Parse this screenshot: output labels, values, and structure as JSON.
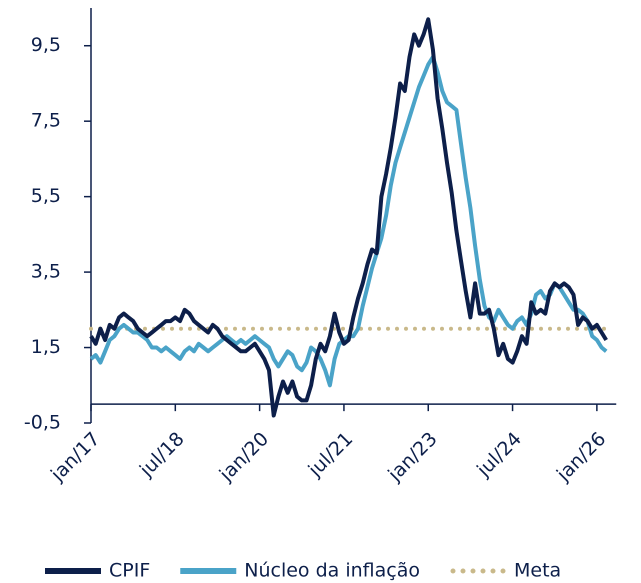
{
  "chart_data": {
    "type": "line",
    "categories": [
      "jan/17",
      null,
      null,
      null,
      null,
      null,
      null,
      null,
      null,
      null,
      null,
      null,
      null,
      null,
      null,
      null,
      null,
      null,
      "jul/18",
      null,
      null,
      null,
      null,
      null,
      null,
      null,
      null,
      null,
      null,
      null,
      null,
      null,
      null,
      null,
      null,
      null,
      "jan/20",
      null,
      null,
      null,
      null,
      null,
      null,
      null,
      null,
      null,
      null,
      null,
      null,
      null,
      null,
      null,
      null,
      null,
      "jul/21",
      null,
      null,
      null,
      null,
      null,
      null,
      null,
      null,
      null,
      null,
      null,
      null,
      null,
      null,
      null,
      null,
      null,
      "jan/23",
      null,
      null,
      null,
      null,
      null,
      null,
      null,
      null,
      null,
      null,
      null,
      null,
      null,
      null,
      null,
      null,
      null,
      "jul/24",
      null,
      null,
      null,
      null,
      null,
      null,
      null,
      null,
      null,
      null,
      null,
      null,
      null,
      null,
      null,
      null,
      null,
      "jan/26",
      null,
      null
    ],
    "series": [
      {
        "name": "CPIF",
        "color": "#0d1f4a",
        "style": "solid",
        "values": [
          1.8,
          1.6,
          2.0,
          1.7,
          2.1,
          2.0,
          2.3,
          2.4,
          2.3,
          2.2,
          2.0,
          1.9,
          1.8,
          1.9,
          2.0,
          2.1,
          2.2,
          2.2,
          2.3,
          2.2,
          2.5,
          2.4,
          2.2,
          2.1,
          2.0,
          1.9,
          2.1,
          2.0,
          1.8,
          1.7,
          1.6,
          1.5,
          1.4,
          1.4,
          1.5,
          1.6,
          1.4,
          1.2,
          0.9,
          -0.3,
          0.2,
          0.6,
          0.3,
          0.6,
          0.2,
          0.1,
          0.1,
          0.5,
          1.2,
          1.6,
          1.4,
          1.8,
          2.4,
          1.9,
          1.6,
          1.7,
          2.3,
          2.8,
          3.2,
          3.7,
          4.1,
          4.0,
          5.5,
          6.1,
          6.8,
          7.6,
          8.5,
          8.3,
          9.2,
          9.8,
          9.5,
          9.8,
          10.2,
          9.4,
          8.1,
          7.3,
          6.4,
          5.6,
          4.6,
          3.8,
          3.0,
          2.3,
          3.2,
          2.4,
          2.4,
          2.5,
          2.0,
          1.3,
          1.6,
          1.2,
          1.1,
          1.4,
          1.8,
          1.6,
          2.7,
          2.4,
          2.5,
          2.4,
          3.0,
          3.2,
          3.1,
          3.2,
          3.1,
          2.9,
          2.1,
          2.3,
          2.2,
          2.0,
          2.1,
          1.9,
          1.7
        ]
      },
      {
        "name": "Núcleo da inflação",
        "color": "#4aa3c8",
        "style": "solid",
        "values": [
          1.2,
          1.3,
          1.1,
          1.4,
          1.7,
          1.8,
          2.0,
          2.1,
          2.0,
          1.9,
          1.9,
          1.8,
          1.7,
          1.5,
          1.5,
          1.4,
          1.5,
          1.4,
          1.3,
          1.2,
          1.4,
          1.5,
          1.4,
          1.6,
          1.5,
          1.4,
          1.5,
          1.6,
          1.7,
          1.8,
          1.7,
          1.6,
          1.7,
          1.6,
          1.7,
          1.8,
          1.7,
          1.6,
          1.5,
          1.2,
          1.0,
          1.2,
          1.4,
          1.3,
          1.0,
          0.9,
          1.1,
          1.5,
          1.4,
          1.2,
          0.9,
          0.5,
          1.2,
          1.6,
          1.7,
          1.8,
          1.8,
          2.0,
          2.6,
          3.1,
          3.6,
          4.0,
          4.4,
          5.0,
          5.8,
          6.4,
          6.8,
          7.2,
          7.6,
          8.0,
          8.4,
          8.7,
          9.0,
          9.2,
          8.8,
          8.3,
          8.0,
          7.9,
          7.8,
          6.9,
          6.0,
          5.2,
          4.2,
          3.3,
          2.6,
          2.3,
          2.2,
          2.5,
          2.3,
          2.1,
          2.0,
          2.2,
          2.3,
          2.1,
          2.4,
          2.9,
          3.0,
          2.8,
          2.9,
          3.2,
          3.1,
          2.9,
          2.7,
          2.5,
          2.5,
          2.4,
          2.2,
          1.8,
          1.7,
          1.5,
          1.4
        ]
      },
      {
        "name": "Meta",
        "color": "#c9b98a",
        "style": "dotted",
        "values": [
          2,
          2,
          2,
          2,
          2,
          2,
          2,
          2,
          2,
          2,
          2,
          2,
          2,
          2,
          2,
          2,
          2,
          2,
          2,
          2,
          2,
          2,
          2,
          2,
          2,
          2,
          2,
          2,
          2,
          2,
          2,
          2,
          2,
          2,
          2,
          2,
          2,
          2,
          2,
          2,
          2,
          2,
          2,
          2,
          2,
          2,
          2,
          2,
          2,
          2,
          2,
          2,
          2,
          2,
          2,
          2,
          2,
          2,
          2,
          2,
          2,
          2,
          2,
          2,
          2,
          2,
          2,
          2,
          2,
          2,
          2,
          2,
          2,
          2,
          2,
          2,
          2,
          2,
          2,
          2,
          2,
          2,
          2,
          2,
          2,
          2,
          2,
          2,
          2,
          2,
          2,
          2,
          2,
          2,
          2,
          2,
          2,
          2,
          2,
          2,
          2,
          2,
          2,
          2,
          2,
          2,
          2,
          2,
          2,
          2,
          2
        ]
      }
    ],
    "ylim": [
      -0.5,
      10.5
    ],
    "yticks": [
      {
        "value": -0.5,
        "label": "-0,5"
      },
      {
        "value": 1.5,
        "label": "1,5"
      },
      {
        "value": 3.5,
        "label": "3,5"
      },
      {
        "value": 5.5,
        "label": "5,5"
      },
      {
        "value": 7.5,
        "label": "7,5"
      },
      {
        "value": 9.5,
        "label": "9,5"
      }
    ],
    "grid": false,
    "legend": "bottom"
  }
}
